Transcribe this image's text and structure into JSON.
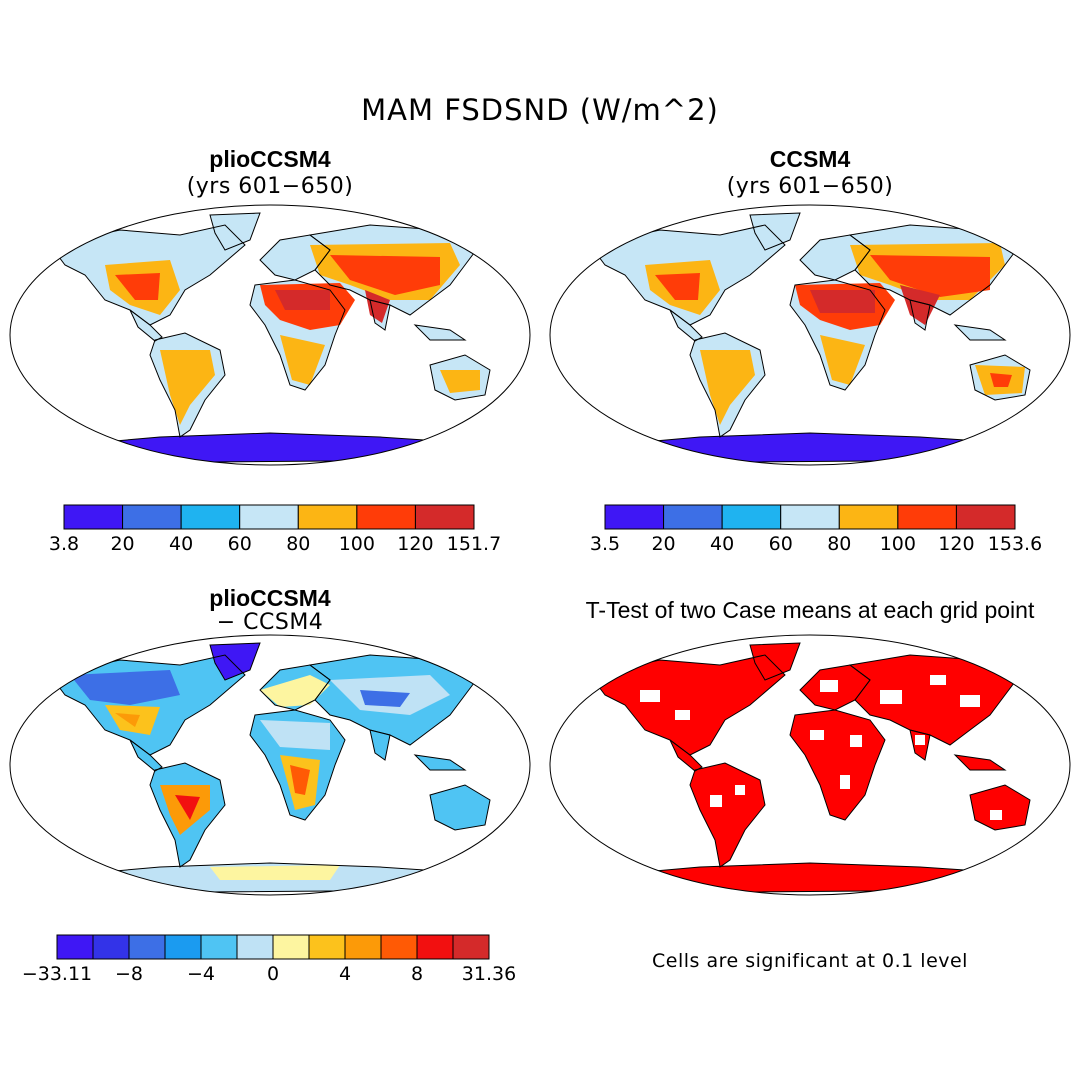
{
  "title": "MAM FSDSND (W/m^2)",
  "panels": {
    "top_left": {
      "title": "plioCCSM4",
      "subtitle": "(yrs 601−650)",
      "colorbar": {
        "colors": [
          "#3f17f5",
          "#3d6fe6",
          "#1fb3f0",
          "#c6e6f6",
          "#fcb514",
          "#ff3c08",
          "#d42a2a"
        ],
        "labels": [
          "3.8",
          "20",
          "40",
          "60",
          "80",
          "100",
          "120",
          "151.7"
        ]
      }
    },
    "top_right": {
      "title": "CCSM4",
      "subtitle": "(yrs 601−650)",
      "colorbar": {
        "colors": [
          "#3f17f5",
          "#3d6fe6",
          "#1fb3f0",
          "#c6e6f6",
          "#fcb514",
          "#ff3c08",
          "#d42a2a"
        ],
        "labels": [
          "3.5",
          "20",
          "40",
          "60",
          "80",
          "100",
          "120",
          "153.6"
        ]
      }
    },
    "bottom_left": {
      "title": "plioCCSM4",
      "subtitle": "− CCSM4",
      "colorbar": {
        "colors": [
          "#3f17f5",
          "#3333e8",
          "#3d6fe6",
          "#1b9bf0",
          "#4fc4f3",
          "#bfe2f5",
          "#fdf5a0",
          "#fcc21c",
          "#fc9a08",
          "#ff5a05",
          "#f21010",
          "#d42a2a"
        ],
        "labels": [
          "−33.11",
          "−8",
          "−4",
          "0",
          "4",
          "8",
          "31.36"
        ]
      }
    },
    "bottom_right": {
      "title": "T-Test of two Case means at each grid point",
      "note": "Cells are significant at 0.1 level",
      "color": "#ff0000"
    }
  }
}
